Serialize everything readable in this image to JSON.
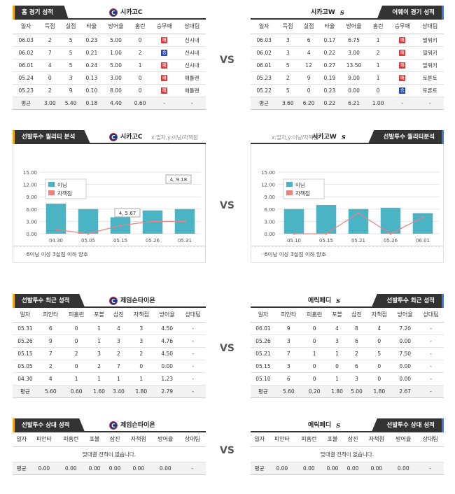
{
  "vs_label": "VS",
  "home_record": {
    "tab": "홈 경기 성적",
    "team": "시카고C",
    "headers": [
      "일자",
      "득점",
      "실점",
      "타율",
      "방어율",
      "홈런",
      "승무패",
      "상대팀"
    ],
    "rows": [
      [
        "06.03",
        "2",
        "5",
        "0.23",
        "5.00",
        "0",
        "패",
        "신시내"
      ],
      [
        "06.02",
        "7",
        "5",
        "0.21",
        "1.00",
        "2",
        "승",
        "신시내"
      ],
      [
        "06.01",
        "4",
        "5",
        "0.24",
        "5.00",
        "1",
        "패",
        "신시내"
      ],
      [
        "05.24",
        "0",
        "3",
        "0.13",
        "3.00",
        "0",
        "패",
        "애틀랜"
      ],
      [
        "05.23",
        "2",
        "9",
        "0.10",
        "8.00",
        "0",
        "패",
        "애틀랜"
      ]
    ],
    "avg": [
      "평균",
      "3.00",
      "5.40",
      "0.18",
      "4.40",
      "0.60",
      "-",
      "-"
    ]
  },
  "away_record": {
    "tab": "어웨이 경기 성적",
    "team": "시카고W",
    "headers": [
      "일자",
      "득점",
      "실점",
      "타율",
      "방어율",
      "홈런",
      "승무패",
      "상대팀"
    ],
    "rows": [
      [
        "06.03",
        "3",
        "6",
        "0.17",
        "6.75",
        "1",
        "패",
        "밀워키"
      ],
      [
        "06.02",
        "3",
        "4",
        "0.22",
        "3.00",
        "2",
        "패",
        "밀워키"
      ],
      [
        "06.01",
        "5",
        "12",
        "0.27",
        "13.50",
        "1",
        "패",
        "밀워키"
      ],
      [
        "05.23",
        "2",
        "9",
        "0.19",
        "9.00",
        "1",
        "패",
        "토론토"
      ],
      [
        "05.22",
        "5",
        "0",
        "0.23",
        "0.00",
        "0",
        "승",
        "토론토"
      ]
    ],
    "avg": [
      "평균",
      "3.60",
      "6.20",
      "0.22",
      "6.21",
      "1.00",
      "-",
      "-"
    ]
  },
  "quality_left": {
    "tab": "선발투수 퀄리티 분석",
    "team": "시카고C",
    "axis_note": "x:일자,y:이닝/자책점",
    "legend": [
      "이닝",
      "자책점"
    ],
    "footnote": "· 6이닝 이상 3실점 이하 양호",
    "annotations": [
      "4, 9.18",
      "4, 5.67"
    ]
  },
  "quality_right": {
    "tab": "선발투수 퀄리티분석",
    "team": "시카고W",
    "axis_note": "x:일자,y:이닝/자책점",
    "legend": [
      "이닝",
      "자책점"
    ],
    "footnote": "· 6이닝 이상 3실점 이하 양호"
  },
  "chart_data": [
    {
      "type": "bar",
      "categories": [
        "04.30",
        "05.05",
        "05.15",
        "05.26",
        "05.31"
      ],
      "ylim": [
        0,
        15
      ],
      "yticks": [
        "0.00",
        "3.00",
        "6.00",
        "9.00",
        "12.00",
        "15.00"
      ],
      "series": [
        {
          "name": "이닝",
          "values": [
            7.33,
            6.0,
            4.0,
            5.67,
            6.0
          ],
          "color": "#4ab3c4"
        },
        {
          "name": "자책점",
          "values": [
            1,
            0,
            2,
            3,
            3
          ],
          "color": "#f08080"
        }
      ]
    },
    {
      "type": "bar",
      "categories": [
        "05.10",
        "05.15",
        "05.21",
        "05.26",
        "06.01"
      ],
      "ylim": [
        0,
        15
      ],
      "yticks": [
        "0.00",
        "3.00",
        "6.00",
        "9.00",
        "12.00",
        "15.00"
      ],
      "series": [
        {
          "name": "이닝",
          "values": [
            6.0,
            7.0,
            6.0,
            6.33,
            5.0
          ],
          "color": "#4ab3c4"
        },
        {
          "name": "자책점",
          "values": [
            0,
            0,
            5,
            0,
            4
          ],
          "color": "#f08080"
        }
      ]
    }
  ],
  "pitcher_left": {
    "tab": "선발투수 최근 성적",
    "team": "제임슨타이욘",
    "headers": [
      "일자",
      "피안타",
      "피홈런",
      "포볼",
      "삼진",
      "자책점",
      "방어율",
      "상대팀"
    ],
    "rows": [
      [
        "05.31",
        "6",
        "0",
        "1",
        "4",
        "3",
        "4.50",
        "-"
      ],
      [
        "05.26",
        "9",
        "0",
        "1",
        "3",
        "3",
        "4.76",
        "-"
      ],
      [
        "05.15",
        "7",
        "2",
        "3",
        "2",
        "2",
        "4.50",
        "-"
      ],
      [
        "05.05",
        "2",
        "0",
        "2",
        "7",
        "0",
        "0.00",
        "-"
      ],
      [
        "04.30",
        "4",
        "1",
        "1",
        "1",
        "1",
        "1.23",
        "-"
      ]
    ],
    "avg": [
      "평균",
      "5.60",
      "0.60",
      "1.60",
      "3.40",
      "1.80",
      "2.79",
      "-"
    ]
  },
  "pitcher_right": {
    "tab": "선발투수 최근 성적",
    "team": "에릭페디",
    "headers": [
      "일자",
      "피안타",
      "피홈런",
      "포볼",
      "삼진",
      "자책점",
      "방어율",
      "상대팀"
    ],
    "rows": [
      [
        "06.01",
        "9",
        "0",
        "4",
        "8",
        "4",
        "7.20",
        "-"
      ],
      [
        "05.26",
        "3",
        "0",
        "3",
        "6",
        "0",
        "0.00",
        "-"
      ],
      [
        "05.21",
        "7",
        "1",
        "1",
        "2",
        "5",
        "7.50",
        "-"
      ],
      [
        "05.15",
        "3",
        "0",
        "0",
        "6",
        "0",
        "0.00",
        "-"
      ],
      [
        "05.10",
        "6",
        "0",
        "1",
        "3",
        "0",
        "0.00",
        "-"
      ]
    ],
    "avg": [
      "평균",
      "5.60",
      "0.20",
      "1.80",
      "5.00",
      "1.80",
      "2.67",
      "-"
    ]
  },
  "vs_left": {
    "tab": "선발투수 상대 성적",
    "team": "제임슨타이욘",
    "headers": [
      "일자",
      "피안타",
      "피홈런",
      "포볼",
      "삼진",
      "자책점",
      "방어율",
      "상대팀"
    ],
    "empty": "맞대결 전적이 없습니다.",
    "avg": [
      "평균",
      "0.00",
      "0.00",
      "0.00",
      "0.00",
      "0.00",
      "0.00",
      "-"
    ]
  },
  "vs_right": {
    "tab": "선발투수 상대 성적",
    "team": "에릭페디",
    "headers": [
      "일자",
      "피안타",
      "피홈런",
      "포볼",
      "삼진",
      "자책점",
      "방어율",
      "상대팀"
    ],
    "empty": "맞대결 전적이 없습니다.",
    "avg": [
      "평균",
      "0.00",
      "0.00",
      "0.00",
      "0.00",
      "0.00",
      "0.00",
      "-"
    ]
  }
}
